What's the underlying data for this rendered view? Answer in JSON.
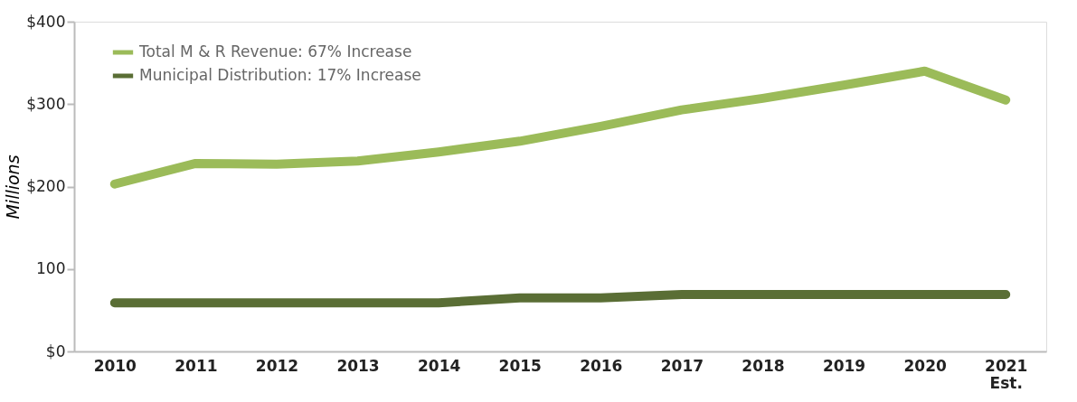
{
  "chart_data": {
    "type": "line",
    "ylabel": "Millions",
    "categories": [
      "2010",
      "2011",
      "2012",
      "2013",
      "2014",
      "2015",
      "2016",
      "2017",
      "2018",
      "2019",
      "2020",
      "2021 Est."
    ],
    "series": [
      {
        "name": "Total M & R Revenue: 67% Increase",
        "color": "#9bbb59",
        "values": [
          203,
          228,
          227,
          231,
          242,
          255,
          273,
          293,
          307,
          323,
          340,
          305
        ]
      },
      {
        "name": "Municipal Distribution: 17% Increase",
        "color": "#5a6e35",
        "values": [
          59,
          59,
          59,
          59,
          59,
          65,
          65,
          69,
          69,
          69,
          69,
          69
        ]
      }
    ],
    "ylim": [
      0,
      400
    ],
    "yticks": [
      {
        "value": 0,
        "label": "$0"
      },
      {
        "value": 100,
        "label": "100"
      },
      {
        "value": 200,
        "label": "$200"
      },
      {
        "value": 300,
        "label": "$300"
      },
      {
        "value": 400,
        "label": "$400"
      }
    ],
    "grid": false,
    "legend": "top left",
    "line_style": "solid"
  }
}
